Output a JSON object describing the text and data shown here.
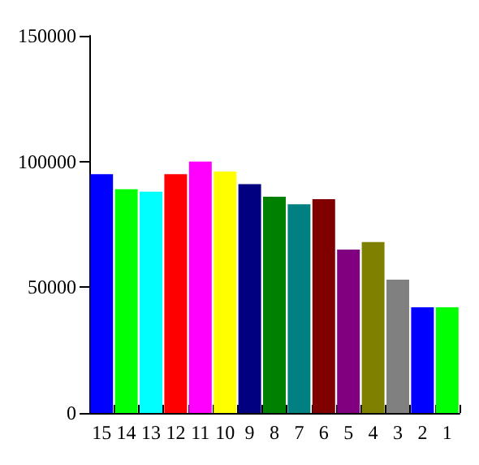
{
  "chart_data": {
    "type": "bar",
    "categories": [
      "15",
      "14",
      "13",
      "12",
      "11",
      "10",
      "9",
      "8",
      "7",
      "6",
      "5",
      "4",
      "3",
      "2",
      "1"
    ],
    "values": [
      95000,
      89000,
      88000,
      95000,
      100000,
      96000,
      91000,
      86000,
      83000,
      85000,
      65000,
      68000,
      53000,
      42000,
      42000
    ],
    "colors": [
      "#0000ff",
      "#00ff00",
      "#00ffff",
      "#ff0000",
      "#ff00ff",
      "#ffff00",
      "#000080",
      "#008000",
      "#008080",
      "#800000",
      "#800080",
      "#808000",
      "#808080",
      "#0000ff",
      "#00ff00"
    ],
    "ylim": [
      0,
      150000
    ],
    "yticks": [
      0,
      50000,
      100000,
      150000
    ],
    "grid": false
  }
}
